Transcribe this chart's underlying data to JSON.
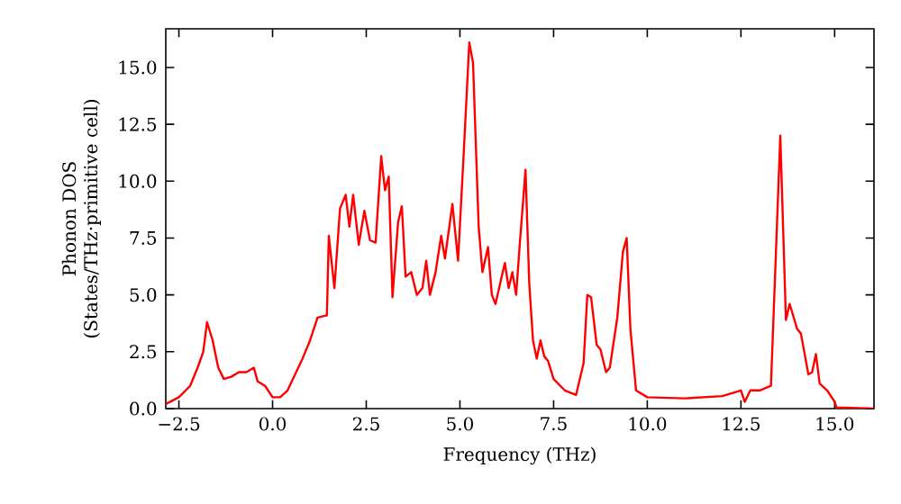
{
  "chart_data": {
    "type": "line",
    "xlabel": "Frequency (THz)",
    "ylabel": "Phonon DOS (States/THz·primitive cell)",
    "xlim": [
      -2.85,
      16.05
    ],
    "ylim": [
      0,
      16.7
    ],
    "xticks": [
      {
        "value": -2.5,
        "label": "−2.5"
      },
      {
        "value": 0,
        "label": "0.0"
      },
      {
        "value": 2.5,
        "label": "2.5"
      },
      {
        "value": 5,
        "label": "5.0"
      },
      {
        "value": 7.5,
        "label": "7.5"
      },
      {
        "value": 10,
        "label": "10.0"
      },
      {
        "value": 12.5,
        "label": "12.5"
      },
      {
        "value": 15,
        "label": "15.0"
      }
    ],
    "yticks": [
      {
        "value": 0,
        "label": "0.0"
      },
      {
        "value": 2.5,
        "label": "2.5"
      },
      {
        "value": 5,
        "label": "5.0"
      },
      {
        "value": 7.5,
        "label": "7.5"
      },
      {
        "value": 10,
        "label": "10.0"
      },
      {
        "value": 12.5,
        "label": "12.5"
      },
      {
        "value": 15,
        "label": "15.0"
      }
    ],
    "grid": false,
    "marker": "none",
    "line_style": "solid",
    "x": [
      -2.85,
      -2.5,
      -2.2,
      -2.0,
      -1.85,
      -1.75,
      -1.6,
      -1.45,
      -1.3,
      -1.1,
      -0.9,
      -0.7,
      -0.5,
      -0.4,
      -0.2,
      0,
      0.2,
      0.4,
      0.6,
      0.8,
      1.0,
      1.2,
      1.45,
      1.5,
      1.65,
      1.8,
      1.95,
      2.05,
      2.15,
      2.3,
      2.45,
      2.6,
      2.75,
      2.9,
      3.0,
      3.1,
      3.2,
      3.35,
      3.45,
      3.55,
      3.7,
      3.85,
      4.0,
      4.1,
      4.2,
      4.35,
      4.5,
      4.6,
      4.8,
      4.95,
      5.1,
      5.25,
      5.35,
      5.5,
      5.6,
      5.75,
      5.85,
      5.95,
      6.1,
      6.2,
      6.3,
      6.4,
      6.5,
      6.6,
      6.75,
      6.85,
      6.95,
      7.05,
      7.15,
      7.25,
      7.35,
      7.5,
      7.8,
      8.1,
      8.3,
      8.4,
      8.5,
      8.65,
      8.75,
      8.9,
      9.0,
      9.2,
      9.35,
      9.45,
      9.55,
      9.7,
      10.0,
      11.0,
      12.0,
      12.5,
      12.6,
      12.75,
      13.0,
      13.3,
      13.55,
      13.7,
      13.8,
      14.0,
      14.1,
      14.3,
      14.4,
      14.5,
      14.6,
      14.8,
      15.0,
      15.05,
      16.05
    ],
    "series": [
      {
        "color": "#ff0000",
        "values": [
          0.2,
          0.5,
          1.0,
          1.8,
          2.5,
          3.8,
          3.0,
          1.8,
          1.3,
          1.4,
          1.6,
          1.6,
          1.8,
          1.2,
          1.0,
          0.5,
          0.5,
          0.8,
          1.5,
          2.2,
          3.0,
          4.0,
          4.1,
          7.6,
          5.3,
          8.8,
          9.4,
          8.0,
          9.4,
          7.2,
          8.7,
          7.4,
          7.3,
          11.1,
          9.6,
          10.2,
          4.9,
          8.2,
          8.9,
          5.8,
          6.0,
          5.0,
          5.3,
          6.5,
          5.0,
          6.0,
          7.6,
          6.6,
          9.0,
          6.5,
          11.2,
          16.1,
          15.2,
          8.0,
          6.0,
          7.1,
          5.0,
          4.6,
          5.7,
          6.4,
          5.3,
          6.0,
          5.0,
          7.3,
          10.5,
          5.5,
          3.0,
          2.2,
          3.0,
          2.3,
          2.1,
          1.3,
          0.8,
          0.6,
          2.0,
          5.0,
          4.9,
          2.8,
          2.6,
          1.6,
          1.8,
          4.0,
          6.9,
          7.5,
          3.5,
          0.8,
          0.5,
          0.45,
          0.55,
          0.8,
          0.3,
          0.8,
          0.8,
          1.0,
          12.0,
          3.9,
          4.6,
          3.5,
          3.3,
          1.5,
          1.6,
          2.4,
          1.1,
          0.8,
          0.3,
          0.05,
          0.0
        ]
      }
    ]
  }
}
